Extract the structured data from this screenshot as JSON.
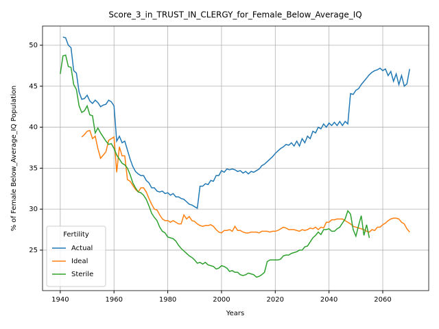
{
  "chart_data": {
    "type": "line",
    "title": "Score_3_in_TRUST_IN_CLERGY_for_Female_Below_Average_IQ",
    "xlabel": "Years",
    "ylabel": "% of Female Below_Average_IQ Population",
    "legend_title": "Fertility",
    "legend": "lower left",
    "grid": true,
    "xlim": [
      1933.4,
      2077.1
    ],
    "ylim": [
      20.06,
      52.34
    ],
    "xticks": [
      1940,
      1960,
      1980,
      2000,
      2020,
      2040,
      2060
    ],
    "yticks": [
      25,
      30,
      35,
      40,
      45,
      50
    ],
    "x": [
      1940,
      1941,
      1942,
      1943,
      1944,
      1945,
      1946,
      1947,
      1948,
      1949,
      1950,
      1951,
      1952,
      1953,
      1954,
      1955,
      1956,
      1957,
      1958,
      1959,
      1960,
      1961,
      1962,
      1963,
      1964,
      1965,
      1966,
      1967,
      1968,
      1969,
      1970,
      1971,
      1972,
      1973,
      1974,
      1975,
      1976,
      1977,
      1978,
      1979,
      1980,
      1981,
      1982,
      1983,
      1984,
      1985,
      1986,
      1987,
      1988,
      1989,
      1990,
      1991,
      1992,
      1993,
      1994,
      1995,
      1996,
      1997,
      1998,
      1999,
      2000,
      2001,
      2002,
      2003,
      2004,
      2005,
      2006,
      2007,
      2008,
      2009,
      2010,
      2011,
      2012,
      2013,
      2014,
      2015,
      2016,
      2017,
      2018,
      2019,
      2020,
      2021,
      2022,
      2023,
      2024,
      2025,
      2026,
      2027,
      2028,
      2029,
      2030,
      2031,
      2032,
      2033,
      2034,
      2035,
      2036,
      2037,
      2038,
      2039,
      2040,
      2041,
      2042,
      2043,
      2044,
      2045,
      2046,
      2047,
      2048,
      2049,
      2050,
      2051,
      2052,
      2053,
      2054,
      2055,
      2056,
      2057,
      2058,
      2059,
      2060,
      2061,
      2062,
      2063,
      2064,
      2065,
      2066,
      2067,
      2068,
      2069,
      2070
    ],
    "series": [
      {
        "name": "Actual",
        "color": "#1f77b4",
        "values": [
          null,
          51.0,
          50.9,
          50.0,
          49.7,
          46.9,
          46.6,
          44.3,
          43.4,
          43.5,
          43.9,
          43.2,
          42.9,
          43.3,
          43.0,
          42.5,
          42.7,
          42.8,
          43.3,
          43.1,
          42.6,
          38.3,
          38.9,
          38.1,
          38.3,
          37.2,
          36.1,
          35.2,
          34.6,
          34.3,
          34.1,
          34.1,
          33.5,
          33.2,
          32.6,
          32.6,
          32.2,
          32.1,
          32.2,
          31.9,
          32.0,
          31.7,
          31.9,
          31.5,
          31.5,
          31.3,
          31.2,
          30.9,
          30.6,
          30.5,
          30.3,
          30.1,
          32.8,
          32.8,
          33.1,
          33.0,
          33.5,
          33.4,
          34.1,
          34.1,
          34.7,
          34.5,
          34.9,
          34.8,
          34.9,
          34.8,
          34.6,
          34.7,
          34.4,
          34.6,
          34.3,
          34.6,
          34.5,
          34.7,
          34.9,
          35.3,
          35.5,
          35.8,
          36.1,
          36.4,
          36.8,
          37.1,
          37.4,
          37.6,
          37.9,
          37.8,
          38.1,
          37.7,
          38.3,
          37.7,
          38.6,
          38.1,
          38.9,
          38.6,
          39.5,
          39.3,
          40.0,
          39.8,
          40.4,
          40.0,
          40.5,
          40.2,
          40.6,
          40.2,
          40.7,
          40.2,
          40.7,
          40.4,
          44.1,
          44.0,
          44.5,
          44.7,
          45.2,
          45.6,
          46.0,
          46.4,
          46.7,
          46.9,
          47.0,
          47.2,
          46.9,
          47.1,
          46.3,
          46.8,
          45.6,
          46.5,
          45.2,
          46.3,
          45.0,
          45.3,
          47.1
        ]
      },
      {
        "name": "Ideal",
        "color": "#ff7f0e",
        "values": [
          null,
          null,
          null,
          null,
          null,
          null,
          null,
          null,
          38.8,
          39.1,
          39.5,
          39.6,
          38.6,
          38.9,
          37.4,
          36.2,
          36.6,
          37.0,
          38.4,
          38.6,
          38.8,
          34.5,
          37.6,
          36.5,
          36.5,
          33.6,
          33.4,
          32.9,
          32.4,
          32.1,
          32.6,
          32.6,
          32.1,
          31.3,
          30.6,
          30.0,
          29.9,
          29.3,
          28.8,
          28.6,
          28.6,
          28.4,
          28.6,
          28.4,
          28.2,
          28.2,
          29.3,
          28.8,
          29.1,
          28.6,
          28.5,
          28.2,
          28.0,
          27.9,
          28.0,
          28.0,
          28.1,
          27.9,
          27.5,
          27.2,
          27.1,
          27.4,
          27.4,
          27.5,
          27.3,
          27.9,
          27.4,
          27.4,
          27.2,
          27.1,
          27.1,
          27.2,
          27.2,
          27.2,
          27.1,
          27.3,
          27.3,
          27.3,
          27.2,
          27.3,
          27.3,
          27.4,
          27.6,
          27.8,
          27.7,
          27.5,
          27.5,
          27.5,
          27.4,
          27.3,
          27.5,
          27.4,
          27.5,
          27.7,
          27.6,
          27.8,
          27.5,
          27.8,
          27.7,
          28.4,
          28.4,
          28.7,
          28.7,
          28.8,
          28.8,
          28.8,
          28.6,
          28.4,
          28.2,
          27.9,
          27.8,
          27.7,
          27.6,
          27.5,
          27.3,
          27.2,
          27.5,
          27.4,
          27.8,
          27.8,
          28.1,
          28.3,
          28.6,
          28.8,
          28.9,
          28.9,
          28.8,
          28.4,
          28.2,
          27.6,
          27.2
        ]
      },
      {
        "name": "Sterile",
        "color": "#2ca02c",
        "values": [
          46.5,
          48.7,
          48.8,
          47.4,
          47.3,
          45.2,
          44.6,
          42.6,
          41.8,
          42.0,
          42.6,
          41.5,
          41.4,
          39.3,
          39.9,
          39.3,
          38.8,
          38.3,
          37.9,
          38.0,
          37.4,
          36.6,
          36.1,
          35.6,
          35.4,
          35.0,
          34.2,
          33.2,
          32.6,
          32.1,
          32.0,
          31.7,
          31.2,
          30.4,
          29.5,
          29.0,
          28.6,
          27.8,
          27.3,
          27.1,
          26.6,
          26.5,
          26.4,
          26.1,
          25.6,
          25.2,
          24.9,
          24.6,
          24.3,
          24.1,
          23.8,
          23.4,
          23.5,
          23.3,
          23.5,
          23.2,
          23.1,
          23.0,
          22.7,
          22.8,
          23.1,
          23.0,
          22.8,
          22.4,
          22.5,
          22.3,
          22.3,
          22.0,
          21.9,
          22.0,
          22.2,
          22.1,
          22.0,
          21.7,
          21.8,
          22.0,
          22.3,
          23.6,
          23.8,
          23.8,
          23.8,
          23.8,
          23.9,
          24.3,
          24.4,
          24.4,
          24.6,
          24.7,
          24.8,
          25.0,
          25.0,
          25.4,
          25.5,
          26.0,
          26.5,
          26.8,
          27.2,
          26.9,
          27.5,
          27.5,
          27.6,
          27.3,
          27.3,
          27.6,
          27.8,
          28.3,
          28.8,
          29.8,
          29.4,
          27.5,
          26.7,
          28.0,
          29.2,
          26.8,
          28.1,
          26.5,
          null,
          null,
          null,
          null,
          null,
          null,
          null,
          null,
          null,
          null,
          null,
          null,
          null,
          null,
          null
        ]
      }
    ]
  }
}
